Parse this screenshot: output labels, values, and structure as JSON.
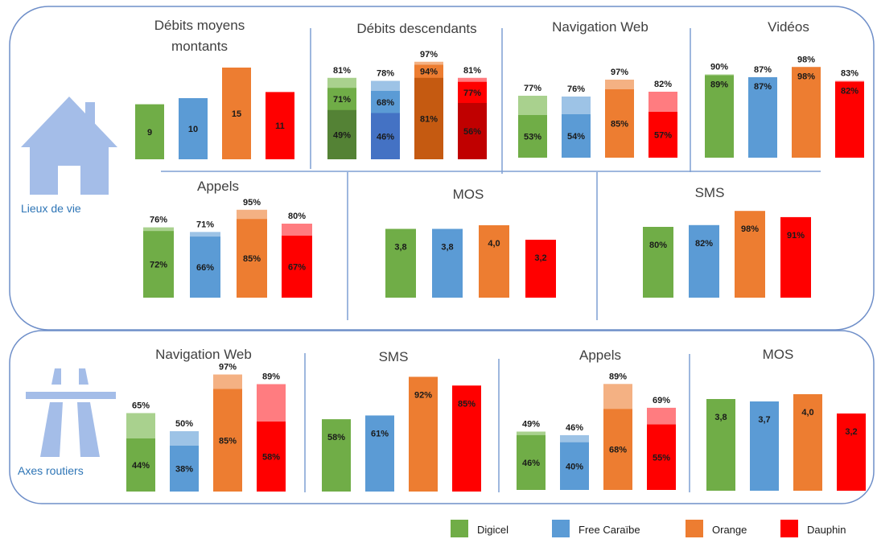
{
  "colors": {
    "Digicel": "#70ad47",
    "Free Caraïbe": "#5b9bd5",
    "Orange": "#ed7d31",
    "Dauphin": "#ff0000"
  },
  "icons": {
    "lieux": "house-icon",
    "axes": "highway-icon"
  },
  "sections": {
    "lieux": {
      "label": "Lieux de vie"
    },
    "axes": {
      "label": "Axes routiers"
    }
  },
  "legend": [
    {
      "name": "Digicel"
    },
    {
      "name": "Free Caraïbe"
    },
    {
      "name": "Orange"
    },
    {
      "name": "Dauphin"
    }
  ],
  "chart_data": [
    {
      "section": "Lieux de vie",
      "type": "bar",
      "title": [
        "Débits moyens",
        "montants"
      ],
      "categories": [
        "Digicel",
        "Free Caraïbe",
        "Orange",
        "Dauphin"
      ],
      "values": [
        9,
        10,
        15,
        11
      ]
    },
    {
      "section": "Lieux de vie",
      "type": "bar",
      "title": [
        "Débits descendants"
      ],
      "categories": [
        "Digicel",
        "Free Caraïbe",
        "Orange",
        "Dauphin"
      ],
      "series": [
        {
          "values": [
            "49%",
            "46%",
            "81%",
            "56%"
          ]
        },
        {
          "values": [
            "71%",
            "68%",
            "94%",
            "77%"
          ]
        },
        {
          "values": [
            "81%",
            "78%",
            "97%",
            "81%"
          ]
        }
      ]
    },
    {
      "section": "Lieux de vie",
      "type": "bar",
      "title": [
        "Navigation Web"
      ],
      "categories": [
        "Digicel",
        "Free Caraïbe",
        "Orange",
        "Dauphin"
      ],
      "series": [
        {
          "values": [
            "53%",
            "54%",
            "85%",
            "57%"
          ]
        },
        {
          "values": [
            "77%",
            "76%",
            "97%",
            "82%"
          ]
        }
      ]
    },
    {
      "section": "Lieux de vie",
      "type": "bar",
      "title": [
        "Vidéos"
      ],
      "categories": [
        "Digicel",
        "Free Caraïbe",
        "Orange",
        "Dauphin"
      ],
      "series": [
        {
          "values": [
            "89%",
            "87%",
            "98%",
            "82%"
          ]
        },
        {
          "values": [
            "90%",
            "87%",
            "98%",
            "83%"
          ]
        }
      ]
    },
    {
      "section": "Lieux de vie",
      "type": "bar",
      "title": [
        "Appels"
      ],
      "categories": [
        "Digicel",
        "Free Caraïbe",
        "Orange",
        "Dauphin"
      ],
      "series": [
        {
          "values": [
            "72%",
            "66%",
            "85%",
            "67%"
          ]
        },
        {
          "values": [
            "76%",
            "71%",
            "95%",
            "80%"
          ]
        }
      ]
    },
    {
      "section": "Lieux de vie",
      "type": "bar",
      "title": [
        "MOS"
      ],
      "categories": [
        "Digicel",
        "Free Caraïbe",
        "Orange",
        "Dauphin"
      ],
      "values": [
        "3,8",
        "3,8",
        "4,0",
        "3,2"
      ]
    },
    {
      "section": "Lieux de vie",
      "type": "bar",
      "title": [
        "SMS"
      ],
      "categories": [
        "Digicel",
        "Free Caraïbe",
        "Orange",
        "Dauphin"
      ],
      "values": [
        "80%",
        "82%",
        "98%",
        "91%"
      ]
    },
    {
      "section": "Axes routiers",
      "type": "bar",
      "title": [
        "Navigation Web"
      ],
      "categories": [
        "Digicel",
        "Free Caraïbe",
        "Orange",
        "Dauphin"
      ],
      "series": [
        {
          "values": [
            "44%",
            "38%",
            "85%",
            "58%"
          ]
        },
        {
          "values": [
            "65%",
            "50%",
            "97%",
            "89%"
          ]
        }
      ]
    },
    {
      "section": "Axes routiers",
      "type": "bar",
      "title": [
        "SMS"
      ],
      "categories": [
        "Digicel",
        "Free Caraïbe",
        "Orange",
        "Dauphin"
      ],
      "values": [
        "58%",
        "61%",
        "92%",
        "85%"
      ]
    },
    {
      "section": "Axes routiers",
      "type": "bar",
      "title": [
        "Appels"
      ],
      "categories": [
        "Digicel",
        "Free Caraïbe",
        "Orange",
        "Dauphin"
      ],
      "series": [
        {
          "values": [
            "46%",
            "40%",
            "68%",
            "55%"
          ]
        },
        {
          "values": [
            "49%",
            "46%",
            "89%",
            "69%"
          ]
        }
      ]
    },
    {
      "section": "Axes routiers",
      "type": "bar",
      "title": [
        "MOS"
      ],
      "categories": [
        "Digicel",
        "Free Caraïbe",
        "Orange",
        "Dauphin"
      ],
      "values": [
        "3,8",
        "3,7",
        "4,0",
        "3,2"
      ]
    }
  ]
}
